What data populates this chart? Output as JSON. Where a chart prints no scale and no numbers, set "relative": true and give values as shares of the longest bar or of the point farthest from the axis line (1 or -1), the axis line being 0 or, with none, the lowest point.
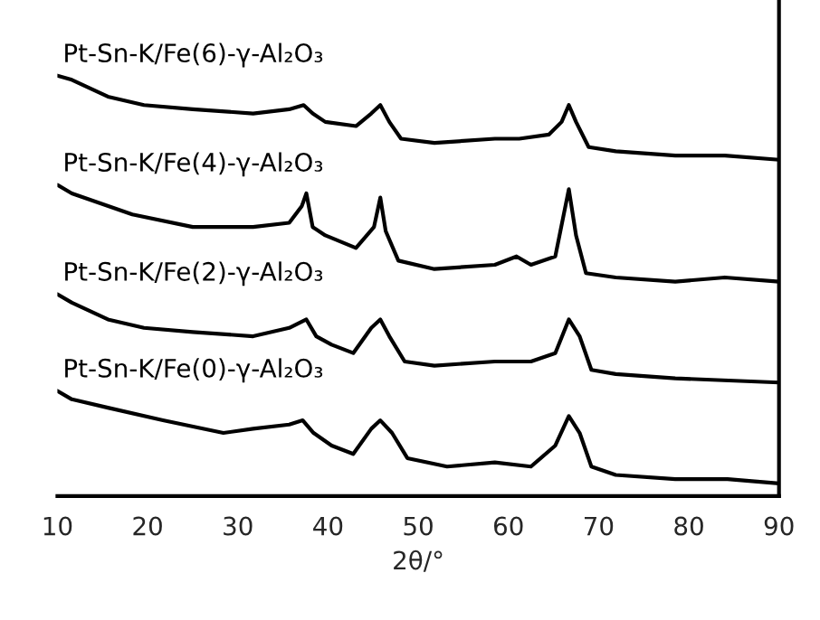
{
  "chart_data": {
    "type": "line",
    "relative": true,
    "xlabel": "2θ/°",
    "xlim": [
      10,
      90
    ],
    "xticks": [
      10,
      20,
      30,
      40,
      50,
      60,
      70,
      80,
      90
    ],
    "grid": false,
    "legend": false,
    "marker": "none",
    "line_style": "solid",
    "series": [
      {
        "name": "Pt-Sn-K/Fe(6)-γ-Al₂O₃",
        "color": "#000000",
        "x": [
          10,
          11.6,
          15.6,
          19.6,
          25,
          31.7,
          35.7,
          37.3,
          38.3,
          39.7,
          43.1,
          44.8,
          45.8,
          46.8,
          48.1,
          51.8,
          58.5,
          61.2,
          64.5,
          65.9,
          66.7,
          67.5,
          68.9,
          71.9,
          78.5,
          84,
          90
        ],
        "values": [
          1.0,
          0.99,
          0.95,
          0.93,
          0.92,
          0.91,
          0.92,
          0.93,
          0.91,
          0.89,
          0.88,
          0.91,
          0.93,
          0.89,
          0.85,
          0.84,
          0.85,
          0.85,
          0.86,
          0.89,
          0.93,
          0.89,
          0.83,
          0.82,
          0.81,
          0.81,
          0.8
        ]
      },
      {
        "name": "Pt-Sn-K/Fe(4)-γ-Al₂O₃",
        "color": "#000000",
        "x": [
          10,
          11.6,
          18.3,
          25,
          31.7,
          35.7,
          37.1,
          37.6,
          38.3,
          39.7,
          43.1,
          45.1,
          45.8,
          46.4,
          47.8,
          51.8,
          58.5,
          60.9,
          62.5,
          65.2,
          66.7,
          67.5,
          68.6,
          71.9,
          78.5,
          84,
          90
        ],
        "values": [
          0.74,
          0.72,
          0.67,
          0.64,
          0.64,
          0.65,
          0.69,
          0.72,
          0.64,
          0.62,
          0.59,
          0.64,
          0.71,
          0.63,
          0.56,
          0.54,
          0.55,
          0.57,
          0.55,
          0.57,
          0.73,
          0.62,
          0.53,
          0.52,
          0.51,
          0.52,
          0.51
        ]
      },
      {
        "name": "Pt-Sn-K/Fe(2)-γ-Al₂O₃",
        "color": "#000000",
        "x": [
          10,
          11.6,
          15.6,
          19.6,
          25,
          31.7,
          35.7,
          37.6,
          38.7,
          40.4,
          42.8,
          44.8,
          45.8,
          46.8,
          48.5,
          51.8,
          58.5,
          62.5,
          65.2,
          66.7,
          67.9,
          69.2,
          71.9,
          78.5,
          90
        ],
        "values": [
          0.48,
          0.46,
          0.42,
          0.4,
          0.39,
          0.38,
          0.4,
          0.42,
          0.38,
          0.36,
          0.34,
          0.4,
          0.42,
          0.38,
          0.32,
          0.31,
          0.32,
          0.32,
          0.34,
          0.42,
          0.38,
          0.3,
          0.29,
          0.28,
          0.27
        ]
      },
      {
        "name": "Pt-Sn-K/Fe(0)-γ-Al₂O₃",
        "color": "#000000",
        "x": [
          10,
          11.6,
          15.6,
          21.7,
          28.4,
          31.7,
          35.7,
          37.2,
          38.4,
          40.4,
          42.8,
          44.8,
          45.8,
          47.1,
          48.8,
          53.2,
          58.5,
          62.5,
          65.2,
          66.7,
          67.9,
          69.2,
          71.9,
          78.5,
          84.3,
          90
        ],
        "values": [
          0.25,
          0.23,
          0.21,
          0.18,
          0.15,
          0.16,
          0.17,
          0.18,
          0.15,
          0.12,
          0.1,
          0.16,
          0.18,
          0.15,
          0.09,
          0.07,
          0.08,
          0.07,
          0.12,
          0.19,
          0.15,
          0.07,
          0.05,
          0.04,
          0.04,
          0.03
        ]
      }
    ]
  }
}
